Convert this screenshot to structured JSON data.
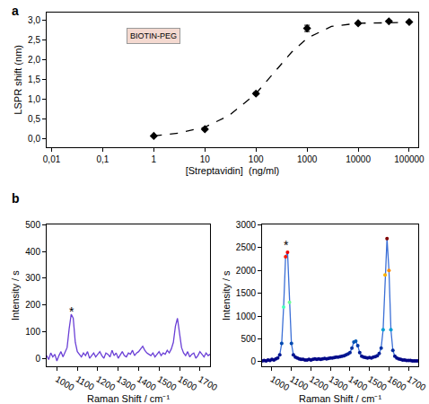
{
  "chart_data": [
    {
      "type": "scatter",
      "panel": "a",
      "log": "x",
      "x_label": "[Streptavidin]  (ng/ml)",
      "y_label": "LSPR shift (nm)",
      "annotations": [
        {
          "text": "BIOTIN-PEG",
          "x": 1,
          "y": 2.6
        }
      ],
      "xlim": [
        0.008,
        150000
      ],
      "xticks": [
        {
          "value": 0.01,
          "label": "0,01"
        },
        {
          "value": 0.1,
          "label": "0,1"
        },
        1,
        10,
        100,
        1000,
        10000,
        100000
      ],
      "ylim": [
        -0.2,
        3.2
      ],
      "yticks": [
        {
          "value": 0,
          "label": "0,0"
        },
        {
          "value": 0.5,
          "label": "0,5"
        },
        {
          "value": 1,
          "label": "1,0"
        },
        {
          "value": 1.5,
          "label": "1,5"
        },
        {
          "value": 2,
          "label": "2,0"
        },
        {
          "value": 2.5,
          "label": "2,5"
        },
        {
          "value": 3,
          "label": "3,0"
        }
      ],
      "grid": false,
      "series": [
        {
          "type": "scatter",
          "marker": "diamond",
          "color": "#000000",
          "x": [
            1,
            10,
            100,
            1000,
            10000,
            40000,
            100000
          ],
          "values": [
            0.08,
            0.25,
            1.15,
            2.8,
            2.93,
            2.98,
            2.96
          ],
          "errors": [
            0.02,
            0.02,
            0.03,
            0.08,
            0.02,
            0.02,
            0.02
          ]
        },
        {
          "type": "line",
          "line_style": "dash",
          "color": "#000000",
          "x": [
            1,
            3,
            10,
            30,
            100,
            200,
            500,
            1000,
            3000,
            10000,
            100000
          ],
          "values": [
            0.08,
            0.15,
            0.3,
            0.6,
            1.15,
            1.6,
            2.2,
            2.55,
            2.85,
            2.93,
            2.95
          ]
        }
      ]
    },
    {
      "type": "line",
      "panel": "b",
      "x_label": "Raman Shift / cm⁻¹",
      "y_label": "Intensity / s",
      "annotations": [
        {
          "text": "*",
          "x": 1075,
          "y": 175
        }
      ],
      "xlim": [
        950,
        1750
      ],
      "xticks": [
        1000,
        1100,
        1200,
        1300,
        1400,
        1500,
        1600,
        1700
      ],
      "ylim": [
        -30,
        500
      ],
      "yticks": [
        0,
        100,
        200,
        300,
        400,
        500
      ],
      "grid": false,
      "series": [
        {
          "type": "line",
          "color": "#6a3fd6",
          "x": [
            950,
            960,
            970,
            980,
            990,
            1000,
            1010,
            1020,
            1030,
            1040,
            1050,
            1060,
            1070,
            1080,
            1090,
            1100,
            1110,
            1120,
            1130,
            1140,
            1150,
            1160,
            1170,
            1180,
            1190,
            1200,
            1210,
            1220,
            1230,
            1240,
            1250,
            1260,
            1270,
            1280,
            1290,
            1300,
            1310,
            1320,
            1330,
            1340,
            1350,
            1360,
            1370,
            1380,
            1390,
            1400,
            1410,
            1420,
            1430,
            1440,
            1450,
            1460,
            1470,
            1480,
            1490,
            1500,
            1510,
            1520,
            1530,
            1540,
            1550,
            1560,
            1570,
            1580,
            1590,
            1600,
            1610,
            1620,
            1630,
            1640,
            1650,
            1660,
            1670,
            1680,
            1690,
            1700,
            1710,
            1720,
            1730,
            1740,
            1750
          ],
          "values": [
            10,
            -5,
            20,
            5,
            15,
            -10,
            10,
            25,
            5,
            20,
            40,
            110,
            165,
            150,
            60,
            25,
            15,
            5,
            20,
            10,
            25,
            0,
            10,
            20,
            5,
            15,
            25,
            10,
            0,
            20,
            15,
            5,
            30,
            10,
            20,
            0,
            15,
            25,
            10,
            5,
            20,
            15,
            30,
            10,
            20,
            25,
            35,
            45,
            30,
            20,
            15,
            10,
            20,
            5,
            15,
            25,
            10,
            20,
            15,
            30,
            20,
            35,
            60,
            120,
            150,
            100,
            40,
            20,
            10,
            25,
            5,
            15,
            20,
            0,
            10,
            25,
            15,
            5,
            20,
            10,
            15
          ]
        }
      ]
    },
    {
      "type": "line",
      "x_label": "Raman Shift / cm⁻¹",
      "y_label": "Intensity / s",
      "annotations": [
        {
          "text": "*",
          "x": 1075,
          "y": 2550
        }
      ],
      "xlim": [
        950,
        1750
      ],
      "xticks": [
        1000,
        1100,
        1200,
        1300,
        1400,
        1500,
        1600,
        1700
      ],
      "ylim": [
        -100,
        3000
      ],
      "yticks": [
        0,
        500,
        1000,
        1500,
        2000,
        2500,
        3000
      ],
      "grid": false,
      "series": [
        {
          "type": "line",
          "color": "#3b6fd6",
          "marker": "circle",
          "x": [
            950,
            960,
            970,
            980,
            990,
            1000,
            1010,
            1020,
            1030,
            1040,
            1050,
            1060,
            1070,
            1080,
            1090,
            1100,
            1110,
            1120,
            1130,
            1140,
            1150,
            1160,
            1170,
            1180,
            1190,
            1200,
            1210,
            1220,
            1230,
            1240,
            1250,
            1260,
            1270,
            1280,
            1290,
            1300,
            1310,
            1320,
            1330,
            1340,
            1350,
            1360,
            1370,
            1380,
            1390,
            1400,
            1410,
            1420,
            1430,
            1440,
            1450,
            1460,
            1470,
            1480,
            1490,
            1500,
            1510,
            1520,
            1530,
            1540,
            1550,
            1560,
            1570,
            1580,
            1590,
            1600,
            1610,
            1620,
            1630,
            1640,
            1650,
            1660,
            1670,
            1680,
            1690,
            1700,
            1710,
            1720,
            1730,
            1740,
            1750
          ],
          "values": [
            20,
            30,
            20,
            40,
            30,
            50,
            40,
            60,
            80,
            150,
            400,
            1200,
            2300,
            2400,
            1300,
            400,
            150,
            100,
            80,
            60,
            50,
            50,
            40,
            40,
            50,
            40,
            50,
            60,
            50,
            60,
            50,
            60,
            70,
            60,
            70,
            80,
            80,
            90,
            100,
            100,
            110,
            120,
            130,
            150,
            170,
            200,
            300,
            430,
            450,
            350,
            200,
            120,
            100,
            90,
            80,
            90,
            80,
            100,
            110,
            130,
            180,
            300,
            700,
            1900,
            2700,
            2000,
            700,
            250,
            120,
            80,
            60,
            50,
            40,
            40,
            30,
            30,
            30,
            20,
            20,
            20,
            20
          ]
        }
      ]
    }
  ]
}
